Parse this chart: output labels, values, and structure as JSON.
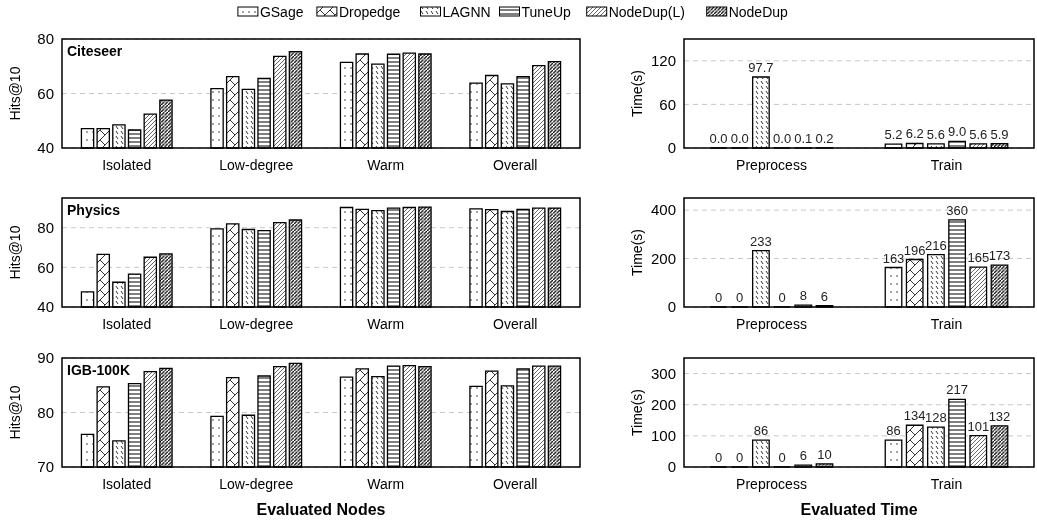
{
  "chart_data": [
    {
      "type": "bar",
      "title": "Citeseer",
      "ylabel": "Hits@10",
      "categories": [
        "Isolated",
        "Low-degree",
        "Warm",
        "Overall"
      ],
      "ylim": [
        40,
        80
      ],
      "yticks": [
        40,
        60,
        80
      ],
      "grid": "y",
      "legend": "top",
      "series": [
        {
          "name": "GSage",
          "color": "#000000",
          "values": [
            47.1,
            61.8,
            71.4,
            63.8
          ]
        },
        {
          "name": "Dropedge",
          "color": "#000000",
          "values": [
            47.1,
            66.2,
            74.5,
            66.6
          ]
        },
        {
          "name": "LAGNN",
          "color": "#000000",
          "values": [
            48.5,
            61.5,
            70.8,
            63.5
          ]
        },
        {
          "name": "TuneUp",
          "color": "#000000",
          "values": [
            46.6,
            65.5,
            74.4,
            66.2
          ]
        },
        {
          "name": "NodeDup(L)",
          "color": "#000000",
          "values": [
            52.4,
            73.6,
            74.8,
            70.2
          ]
        },
        {
          "name": "NodeDup",
          "color": "#000000",
          "values": [
            57.6,
            75.4,
            74.5,
            71.7
          ]
        }
      ]
    },
    {
      "type": "bar",
      "ylabel": "Time(s)",
      "categories": [
        "Preprocess",
        "Train"
      ],
      "ylim": [
        0,
        150
      ],
      "yticks": [
        0,
        60,
        120
      ],
      "grid": "y",
      "series": [
        {
          "color": "#000000",
          "values": [
            0.0,
            5.2
          ],
          "value_labels": [
            "0.0",
            "5.2"
          ]
        },
        {
          "color": "#000000",
          "values": [
            0.0,
            6.2
          ],
          "value_labels": [
            "0.0",
            "6.2"
          ]
        },
        {
          "color": "#000000",
          "values": [
            97.7,
            5.6
          ],
          "value_labels": [
            "97.7",
            "5.6"
          ]
        },
        {
          "color": "#000000",
          "values": [
            0.0,
            9.0
          ],
          "value_labels": [
            "0.0",
            "9.0"
          ]
        },
        {
          "color": "#000000",
          "values": [
            0.1,
            5.6
          ],
          "value_labels": [
            "0.1",
            "5.6"
          ]
        },
        {
          "color": "#000000",
          "values": [
            0.2,
            5.9
          ],
          "value_labels": [
            "0.2",
            "5.9"
          ]
        }
      ]
    },
    {
      "type": "bar",
      "title": "Physics",
      "ylabel": "Hits@10",
      "categories": [
        "Isolated",
        "Low-degree",
        "Warm",
        "Overall"
      ],
      "ylim": [
        40,
        95
      ],
      "yticks": [
        40,
        60,
        80
      ],
      "grid": "y",
      "series": [
        {
          "color": "#000000",
          "values": [
            47.6,
            79.4,
            90.2,
            89.5
          ]
        },
        {
          "color": "#000000",
          "values": [
            66.6,
            81.9,
            89.3,
            89.1
          ]
        },
        {
          "color": "#000000",
          "values": [
            52.5,
            79.1,
            88.6,
            88.2
          ]
        },
        {
          "color": "#000000",
          "values": [
            56.6,
            78.5,
            89.9,
            89.3
          ]
        },
        {
          "color": "#000000",
          "values": [
            65.1,
            82.6,
            90.2,
            89.9
          ]
        },
        {
          "color": "#000000",
          "values": [
            66.8,
            83.9,
            90.4,
            89.9
          ]
        }
      ]
    },
    {
      "type": "bar",
      "ylabel": "Time(s)",
      "categories": [
        "Preprocess",
        "Train"
      ],
      "ylim": [
        0,
        450
      ],
      "yticks": [
        0,
        200,
        400
      ],
      "grid": "y",
      "series": [
        {
          "color": "#000000",
          "values": [
            0,
            163
          ],
          "value_labels": [
            "0",
            "163"
          ]
        },
        {
          "color": "#000000",
          "values": [
            0,
            196
          ],
          "value_labels": [
            "0",
            "196"
          ]
        },
        {
          "color": "#000000",
          "values": [
            233,
            216
          ],
          "value_labels": [
            "233",
            "216"
          ]
        },
        {
          "color": "#000000",
          "values": [
            0,
            360
          ],
          "value_labels": [
            "0",
            "360"
          ]
        },
        {
          "color": "#000000",
          "values": [
            8,
            165
          ],
          "value_labels": [
            "8",
            "165"
          ]
        },
        {
          "color": "#000000",
          "values": [
            6,
            173
          ],
          "value_labels": [
            "6",
            "173"
          ]
        }
      ]
    },
    {
      "type": "bar",
      "title": "IGB-100K",
      "ylabel": "Hits@10",
      "xlabel": "Evaluated Nodes",
      "categories": [
        "Isolated",
        "Low-degree",
        "Warm",
        "Overall"
      ],
      "ylim": [
        70,
        90
      ],
      "yticks": [
        70,
        80,
        90
      ],
      "grid": "y",
      "series": [
        {
          "color": "#000000",
          "values": [
            76.0,
            79.3,
            86.5,
            84.8
          ]
        },
        {
          "color": "#000000",
          "values": [
            84.7,
            86.4,
            88.0,
            87.6
          ]
        },
        {
          "color": "#000000",
          "values": [
            74.8,
            79.5,
            86.6,
            84.9
          ]
        },
        {
          "color": "#000000",
          "values": [
            85.3,
            86.7,
            88.5,
            88.0
          ]
        },
        {
          "color": "#000000",
          "values": [
            87.5,
            88.4,
            88.6,
            88.5
          ]
        },
        {
          "color": "#000000",
          "values": [
            88.1,
            89.0,
            88.4,
            88.5
          ]
        }
      ]
    },
    {
      "type": "bar",
      "ylabel": "Time(s)",
      "xlabel": "Evaluated Time",
      "categories": [
        "Preprocess",
        "Train"
      ],
      "ylim": [
        0,
        350
      ],
      "yticks": [
        0,
        100,
        200,
        300
      ],
      "grid": "y",
      "series": [
        {
          "color": "#000000",
          "values": [
            0,
            86
          ],
          "value_labels": [
            "0",
            "86"
          ]
        },
        {
          "color": "#000000",
          "values": [
            0,
            134
          ],
          "value_labels": [
            "0",
            "134"
          ]
        },
        {
          "color": "#000000",
          "values": [
            86,
            128
          ],
          "value_labels": [
            "86",
            "128"
          ]
        },
        {
          "color": "#000000",
          "values": [
            0,
            217
          ],
          "value_labels": [
            "0",
            "217"
          ]
        },
        {
          "color": "#000000",
          "values": [
            6,
            101
          ],
          "value_labels": [
            "6",
            "101"
          ]
        },
        {
          "color": "#000000",
          "values": [
            10,
            132
          ],
          "value_labels": [
            "10",
            "132"
          ]
        }
      ]
    }
  ]
}
